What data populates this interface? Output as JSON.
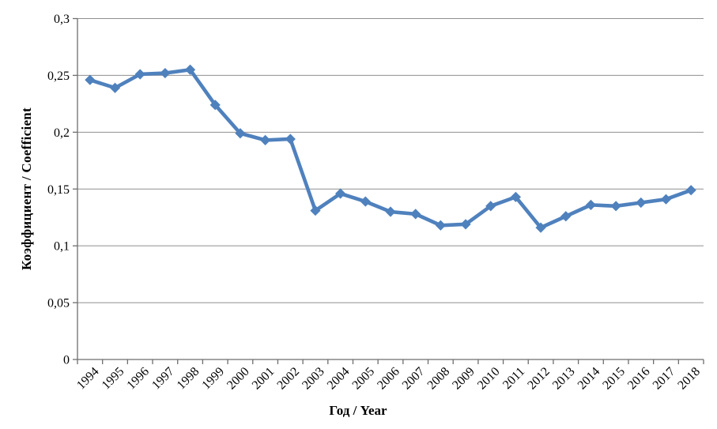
{
  "figure": {
    "background": "#ffffff"
  },
  "chart_data": {
    "type": "line",
    "title": "",
    "xlabel": "Год / Year",
    "ylabel": "Коэффициент / Coefficient",
    "categories": [
      "1994",
      "1995",
      "1996",
      "1997",
      "1998",
      "1999",
      "2000",
      "2001",
      "2002",
      "2003",
      "2004",
      "2005",
      "2006",
      "2007",
      "2008",
      "2009",
      "2010",
      "2011",
      "2012",
      "2013",
      "2014",
      "2015",
      "2016",
      "2017",
      "2018"
    ],
    "series": [
      {
        "name": "Коэффициент / Coefficient",
        "values": [
          0.246,
          0.239,
          0.251,
          0.252,
          0.255,
          0.224,
          0.199,
          0.193,
          0.194,
          0.131,
          0.146,
          0.139,
          0.13,
          0.128,
          0.118,
          0.119,
          0.135,
          0.143,
          0.116,
          0.126,
          0.136,
          0.135,
          0.138,
          0.141,
          0.149
        ]
      }
    ],
    "ylim": [
      0,
      0.3
    ],
    "ytick_step": 0.05,
    "ytick_labels": [
      "0",
      "0,05",
      "0,1",
      "0,15",
      "0,2",
      "0,25",
      "0,3"
    ],
    "xtick_rotation_deg": 45,
    "grid": true,
    "legend_position": "none",
    "marker": "diamond",
    "colors": {
      "series": "#4F81BD",
      "gridline": "#8F8F8F",
      "axis": "#6E6E6E",
      "text": "#000000"
    }
  }
}
